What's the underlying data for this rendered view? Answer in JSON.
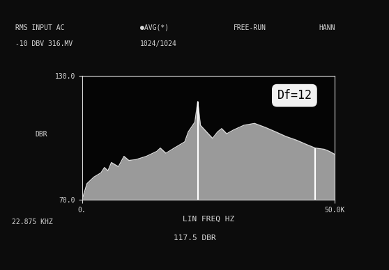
{
  "chart_data": {
    "type": "area",
    "header": [
      "RMS INPUT AC",
      "-10 DBV 316.MV",
      "●AVG(*)",
      "1024/1024",
      "FREE-RUN",
      "HANN"
    ],
    "x_label": "LIN FREQ HZ",
    "y_label": "DBR",
    "annotations": [
      "22.875 KHZ",
      "117.5 DBR",
      "Df=12"
    ],
    "x": [
      0,
      967,
      2348,
      3729,
      4420,
      5110,
      5801,
      7182,
      8287,
      9254,
      10635,
      12707,
      14779,
      15470,
      16575,
      18232,
      20304,
      21000,
      22300,
      22875,
      23400,
      25800,
      26800,
      27600,
      28600,
      30000,
      32000,
      34100,
      36200,
      38300,
      40300,
      42400,
      44500,
      46100,
      47900,
      48900,
      50000
    ],
    "values": [
      70,
      77.8,
      81,
      83,
      85.6,
      84,
      88,
      86,
      91,
      89,
      89.4,
      91,
      93.4,
      95,
      92.5,
      95,
      98,
      102.8,
      107.5,
      117.5,
      106,
      99.7,
      102.8,
      104.4,
      101.9,
      103.8,
      106,
      106.9,
      105,
      102.8,
      100.6,
      98.8,
      96.6,
      95,
      94.4,
      93.4,
      91.9
    ],
    "cursor_x": [
      22875,
      46100
    ],
    "color": "#9a9a9a",
    "xlim": [
      0,
      50000
    ],
    "xticks": [
      {
        "value": 0,
        "label": "0."
      },
      {
        "value": 50000,
        "label": "50.0K"
      }
    ],
    "ylim": [
      70,
      130
    ],
    "yticks": [
      {
        "value": 70,
        "label": "70.0"
      },
      {
        "value": 130,
        "label": "130.0"
      }
    ],
    "grid": false
  }
}
